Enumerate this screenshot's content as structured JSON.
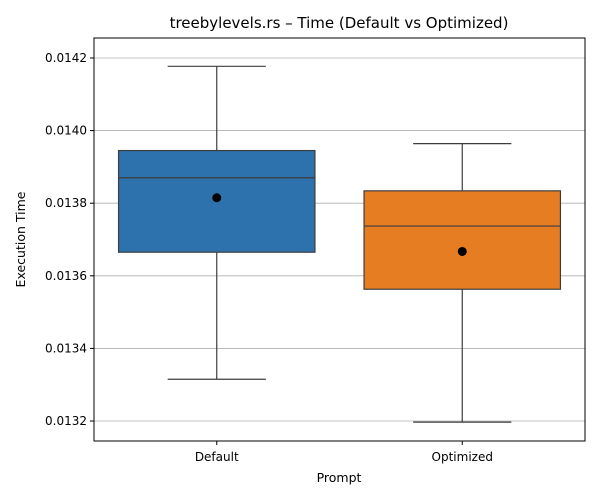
{
  "chart_data": {
    "type": "box",
    "title": "treebylevels.rs – Time (Default vs Optimized)",
    "xlabel": "Prompt",
    "ylabel": "Execution Time",
    "ylim": [
      0.013145,
      0.014255
    ],
    "yticks": [
      0.0132,
      0.0134,
      0.0136,
      0.0138,
      0.014,
      0.0142
    ],
    "ytick_labels": [
      "0.0132",
      "0.0134",
      "0.0136",
      "0.0138",
      "0.0140",
      "0.0142"
    ],
    "grid": "y-only",
    "categories": [
      "Default",
      "Optimized"
    ],
    "boxes": [
      {
        "category": "Default",
        "color": "#2e72ad",
        "whisker_low": 0.013315,
        "q1": 0.013665,
        "median": 0.01387,
        "q3": 0.013945,
        "whisker_high": 0.014177,
        "mean": 0.013815
      },
      {
        "category": "Optimized",
        "color": "#e67d23",
        "whisker_low": 0.013197,
        "q1": 0.013563,
        "median": 0.013737,
        "q3": 0.013834,
        "whisker_high": 0.013964,
        "mean": 0.013667
      }
    ]
  }
}
